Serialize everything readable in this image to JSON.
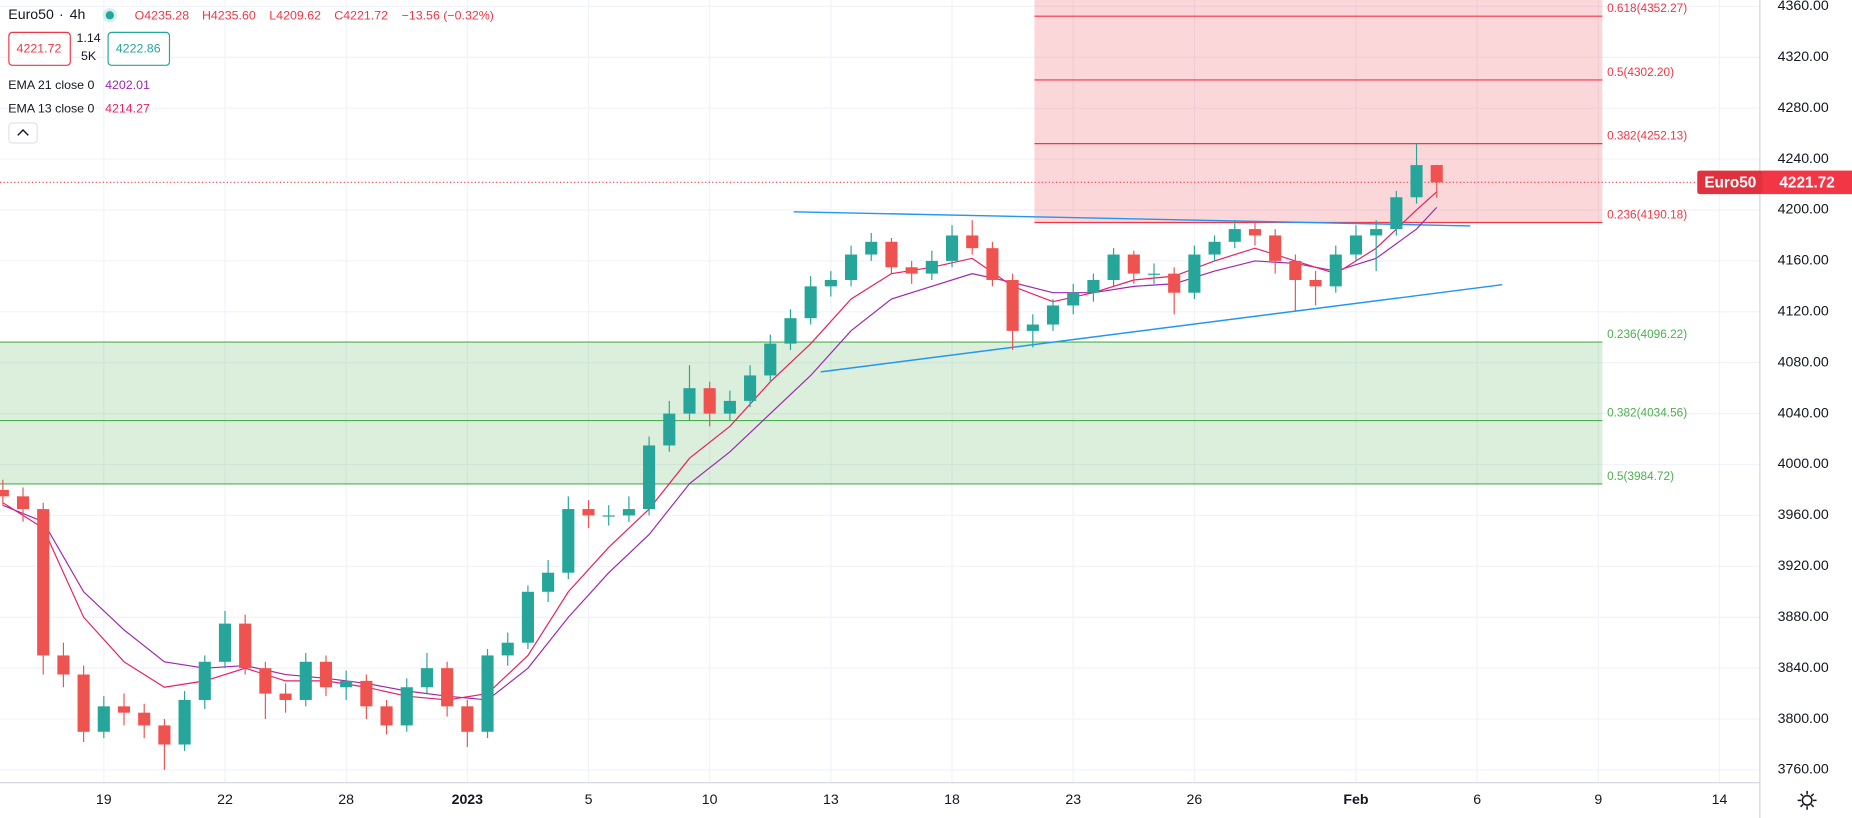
{
  "chart_data": {
    "type": "candlestick",
    "header": {
      "symbol": "Euro50",
      "interval": "4h",
      "o": "O4235.28",
      "h": "H4235.60",
      "l": "L4209.62",
      "c": "C4221.72",
      "change": "−13.56 (−0.32%)",
      "bid": "4221.72",
      "spread": "1.14",
      "volume": "5K",
      "ask": "4222.86"
    },
    "x": [
      -2.5,
      -2,
      -1.5,
      -1,
      -0.5,
      0,
      0.5,
      1,
      1.5,
      2,
      2.5,
      3,
      3.5,
      4,
      4.5,
      5,
      5.5,
      6,
      6.5,
      7,
      7.5,
      8,
      8.5,
      9,
      9.5,
      10,
      10.5,
      11,
      11.5,
      12,
      12.5,
      13,
      13.5,
      14,
      14.5,
      15,
      15.5,
      16,
      16.5,
      17,
      17.5,
      18,
      18.5,
      19,
      19.5,
      20,
      20.5,
      21,
      21.5,
      22,
      22.5,
      23,
      23.5,
      24,
      24.5,
      25,
      25.5,
      26,
      26.5,
      27,
      27.5,
      28,
      28.5,
      29,
      29.5,
      30,
      30.5,
      31,
      31.5,
      32,
      32.5,
      33
    ],
    "open": [
      3980,
      3975,
      3965,
      3850,
      3835,
      3790,
      3810,
      3805,
      3795,
      3780,
      3815,
      3845,
      3875,
      3840,
      3820,
      3815,
      3845,
      3825,
      3830,
      3810,
      3795,
      3825,
      3840,
      3810,
      3790,
      3850,
      3860,
      3900,
      3915,
      3965,
      3960,
      3960,
      3965,
      4015,
      4040,
      4060,
      4040,
      4050,
      4070,
      4095,
      4115,
      4140,
      4145,
      4165,
      4175,
      4155,
      4150,
      4160,
      4180,
      4170,
      4145,
      4105,
      4110,
      4125,
      4135,
      4145,
      4165,
      4150,
      4150,
      4135,
      4165,
      4175,
      4185,
      4180,
      4160,
      4145,
      4140,
      4165,
      4180,
      4185,
      4210,
      4235.28
    ],
    "high": [
      3988,
      3982,
      3970,
      3860,
      3842,
      3818,
      3820,
      3812,
      3800,
      3822,
      3850,
      3885,
      3882,
      3845,
      3828,
      3852,
      3850,
      3838,
      3835,
      3815,
      3832,
      3852,
      3845,
      3815,
      3855,
      3868,
      3905,
      3925,
      3975,
      3972,
      3968,
      3975,
      4022,
      4050,
      4078,
      4065,
      4058,
      4078,
      4102,
      4122,
      4148,
      4152,
      4172,
      4182,
      4178,
      4160,
      4168,
      4188,
      4192,
      4175,
      4150,
      4118,
      4130,
      4142,
      4150,
      4170,
      4168,
      4158,
      4155,
      4172,
      4180,
      4192,
      4190,
      4185,
      4165,
      4152,
      4172,
      4188,
      4192,
      4215,
      4252,
      4235.6
    ],
    "low": [
      3968,
      3955,
      3835,
      3825,
      3782,
      3785,
      3795,
      3785,
      3760,
      3775,
      3808,
      3840,
      3835,
      3800,
      3805,
      3810,
      3818,
      3815,
      3800,
      3788,
      3790,
      3820,
      3802,
      3778,
      3785,
      3842,
      3855,
      3892,
      3910,
      3950,
      3952,
      3955,
      3960,
      4010,
      4035,
      4030,
      4035,
      4045,
      4065,
      4090,
      4110,
      4132,
      4140,
      4160,
      4150,
      4142,
      4145,
      4155,
      4165,
      4140,
      4090,
      4092,
      4105,
      4118,
      4128,
      4140,
      4142,
      4142,
      4118,
      4130,
      4160,
      4170,
      4172,
      4150,
      4120,
      4125,
      4135,
      4160,
      4152,
      4180,
      4205,
      4209.62
    ],
    "close": [
      3975,
      3965,
      3850,
      3835,
      3790,
      3810,
      3805,
      3795,
      3780,
      3815,
      3845,
      3875,
      3840,
      3820,
      3815,
      3845,
      3825,
      3830,
      3810,
      3795,
      3825,
      3840,
      3810,
      3790,
      3850,
      3860,
      3900,
      3915,
      3965,
      3960,
      3960,
      3965,
      4015,
      4040,
      4060,
      4040,
      4050,
      4070,
      4095,
      4115,
      4140,
      4145,
      4165,
      4175,
      4155,
      4150,
      4160,
      4180,
      4170,
      4145,
      4105,
      4110,
      4125,
      4135,
      4145,
      4165,
      4150,
      4150,
      4135,
      4165,
      4175,
      4185,
      4180,
      4160,
      4145,
      4140,
      4165,
      4180,
      4185,
      4210,
      4235.28,
      4221.72
    ],
    "up_color": "#26a69a",
    "down_color": "#ef5350",
    "series": [
      {
        "name": "EMA 21 close 0",
        "color": "#9c27b0",
        "x": [
          -2.5,
          -1.5,
          -0.5,
          0.5,
          1.5,
          2.5,
          3.5,
          4.5,
          5.5,
          6.5,
          7.5,
          8.5,
          9.5,
          10.5,
          11.5,
          12.5,
          13.5,
          14.5,
          15.5,
          16.5,
          17.5,
          18.5,
          19.5,
          20.5,
          21.5,
          22.5,
          23.5,
          24.5,
          25.5,
          26.5,
          27.5,
          28.5,
          29.5,
          30.5,
          31.5,
          32.5,
          33
        ],
        "values": [
          3968,
          3955,
          3900,
          3870,
          3845,
          3840,
          3842,
          3835,
          3832,
          3828,
          3822,
          3818,
          3815,
          3840,
          3880,
          3915,
          3945,
          3985,
          4010,
          4040,
          4070,
          4105,
          4130,
          4140,
          4150,
          4143,
          4135,
          4135,
          4140,
          4142,
          4152,
          4160,
          4158,
          4152,
          4162,
          4185,
          4202.01
        ]
      },
      {
        "name": "EMA 13 close 0",
        "color": "#e91e63",
        "x": [
          -2.5,
          -1.5,
          -0.5,
          0.5,
          1.5,
          2.5,
          3.5,
          4.5,
          5.5,
          6.5,
          7.5,
          8.5,
          9.5,
          10.5,
          11.5,
          12.5,
          13.5,
          14.5,
          15.5,
          16.5,
          17.5,
          18.5,
          19.5,
          20.5,
          21.5,
          22.5,
          23.5,
          24.5,
          25.5,
          26.5,
          27.5,
          28.5,
          29.5,
          30.5,
          31.5,
          32.5,
          33
        ],
        "values": [
          3970,
          3950,
          3880,
          3845,
          3825,
          3830,
          3840,
          3830,
          3830,
          3825,
          3818,
          3815,
          3820,
          3850,
          3900,
          3935,
          3965,
          4005,
          4030,
          4065,
          4095,
          4130,
          4150,
          4155,
          4162,
          4140,
          4128,
          4135,
          4145,
          4148,
          4160,
          4170,
          4160,
          4150,
          4170,
          4200,
          4214.27
        ]
      }
    ],
    "fib_zones": [
      {
        "color": "#f23645",
        "x": [
          23.04,
          37.1
        ],
        "levels": [
          {
            "value": 4190.18,
            "label": "0.236(4190.18)"
          },
          {
            "value": 4252.13,
            "label": "0.382(4252.13)"
          },
          {
            "value": 4302.2,
            "label": "0.5(4302.20)"
          },
          {
            "value": 4352.27,
            "label": "0.618(4352.27)"
          }
        ]
      },
      {
        "color": "#4caf50",
        "x": [
          -2.57,
          37.1
        ],
        "levels": [
          {
            "value": 4096.22,
            "label": "0.236(4096.22)"
          },
          {
            "value": 4034.56,
            "label": "0.382(4034.56)"
          },
          {
            "value": 3984.72,
            "label": "0.5(3984.72)"
          }
        ]
      }
    ],
    "trendlines": [
      {
        "color": "#2196f3",
        "x": [
          17.08,
          33.83
        ],
        "values": [
          4198.6,
          4187.5
        ]
      },
      {
        "color": "#2196f3",
        "x": [
          17.75,
          34.62
        ],
        "values": [
          4072.8,
          4141.3
        ]
      }
    ],
    "last_price": 4221.72,
    "last_color": "#f23645",
    "xlim": [
      -2.57,
      41
    ],
    "ylim": [
      3750,
      4365
    ],
    "xticks": [
      {
        "value": 0,
        "label": "19"
      },
      {
        "value": 3,
        "label": "22"
      },
      {
        "value": 6,
        "label": "28"
      },
      {
        "value": 9,
        "label": "2023"
      },
      {
        "value": 12,
        "label": "5"
      },
      {
        "value": 15,
        "label": "10"
      },
      {
        "value": 18,
        "label": "13"
      },
      {
        "value": 21,
        "label": "18"
      },
      {
        "value": 24,
        "label": "23"
      },
      {
        "value": 27,
        "label": "26"
      },
      {
        "value": 31,
        "label": "Feb"
      },
      {
        "value": 34,
        "label": "6"
      },
      {
        "value": 37,
        "label": "9"
      },
      {
        "value": 40,
        "label": "14"
      }
    ],
    "yticks": [
      {
        "value": 3760,
        "label": "3760.00"
      },
      {
        "value": 3800,
        "label": "3800.00"
      },
      {
        "value": 3840,
        "label": "3840.00"
      },
      {
        "value": 3880,
        "label": "3880.00"
      },
      {
        "value": 3920,
        "label": "3920.00"
      },
      {
        "value": 3960,
        "label": "3960.00"
      },
      {
        "value": 4000,
        "label": "4000.00"
      },
      {
        "value": 4040,
        "label": "4040.00"
      },
      {
        "value": 4080,
        "label": "4080.00"
      },
      {
        "value": 4120,
        "label": "4120.00"
      },
      {
        "value": 4160,
        "label": "4160.00"
      },
      {
        "value": 4200,
        "label": "4200.00"
      },
      {
        "value": 4240,
        "label": "4240.00"
      },
      {
        "value": 4280,
        "label": "4280.00"
      },
      {
        "value": 4320,
        "label": "4320.00"
      },
      {
        "value": 4360,
        "label": "4360.00"
      }
    ],
    "grid": true
  }
}
